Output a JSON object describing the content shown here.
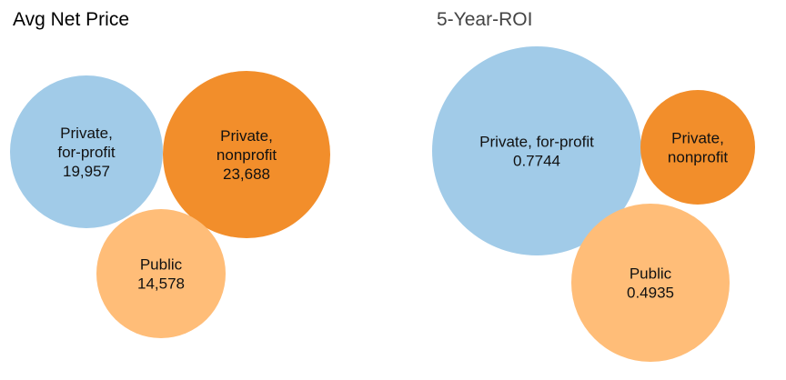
{
  "chart_data": [
    {
      "type": "bubble",
      "title": "Avg Net Price",
      "series": [
        {
          "name": "Private, for-profit",
          "label_lines": [
            "Private,",
            "for-profit"
          ],
          "value": 19957,
          "display_value": "19,957",
          "color": "#a1cbe8"
        },
        {
          "name": "Private, nonprofit",
          "label_lines": [
            "Private,",
            "nonprofit"
          ],
          "value": 23688,
          "display_value": "23,688",
          "color": "#f28e2b"
        },
        {
          "name": "Public",
          "label_lines": [
            "Public"
          ],
          "value": 14578,
          "display_value": "14,578",
          "color": "#ffbd78"
        }
      ]
    },
    {
      "type": "bubble",
      "title": "5-Year-ROI",
      "series": [
        {
          "name": "Private, for-profit",
          "label_lines": [
            "Private, for-profit"
          ],
          "value": 0.7744,
          "display_value": "0.7744",
          "color": "#a1cbe8"
        },
        {
          "name": "Private, nonprofit",
          "label_lines": [
            "Private,",
            "nonprofit"
          ],
          "value": null,
          "display_value": "",
          "color": "#f28e2b"
        },
        {
          "name": "Public",
          "label_lines": [
            "Public"
          ],
          "value": 0.4935,
          "display_value": "0.4935",
          "color": "#ffbd78"
        }
      ]
    }
  ]
}
